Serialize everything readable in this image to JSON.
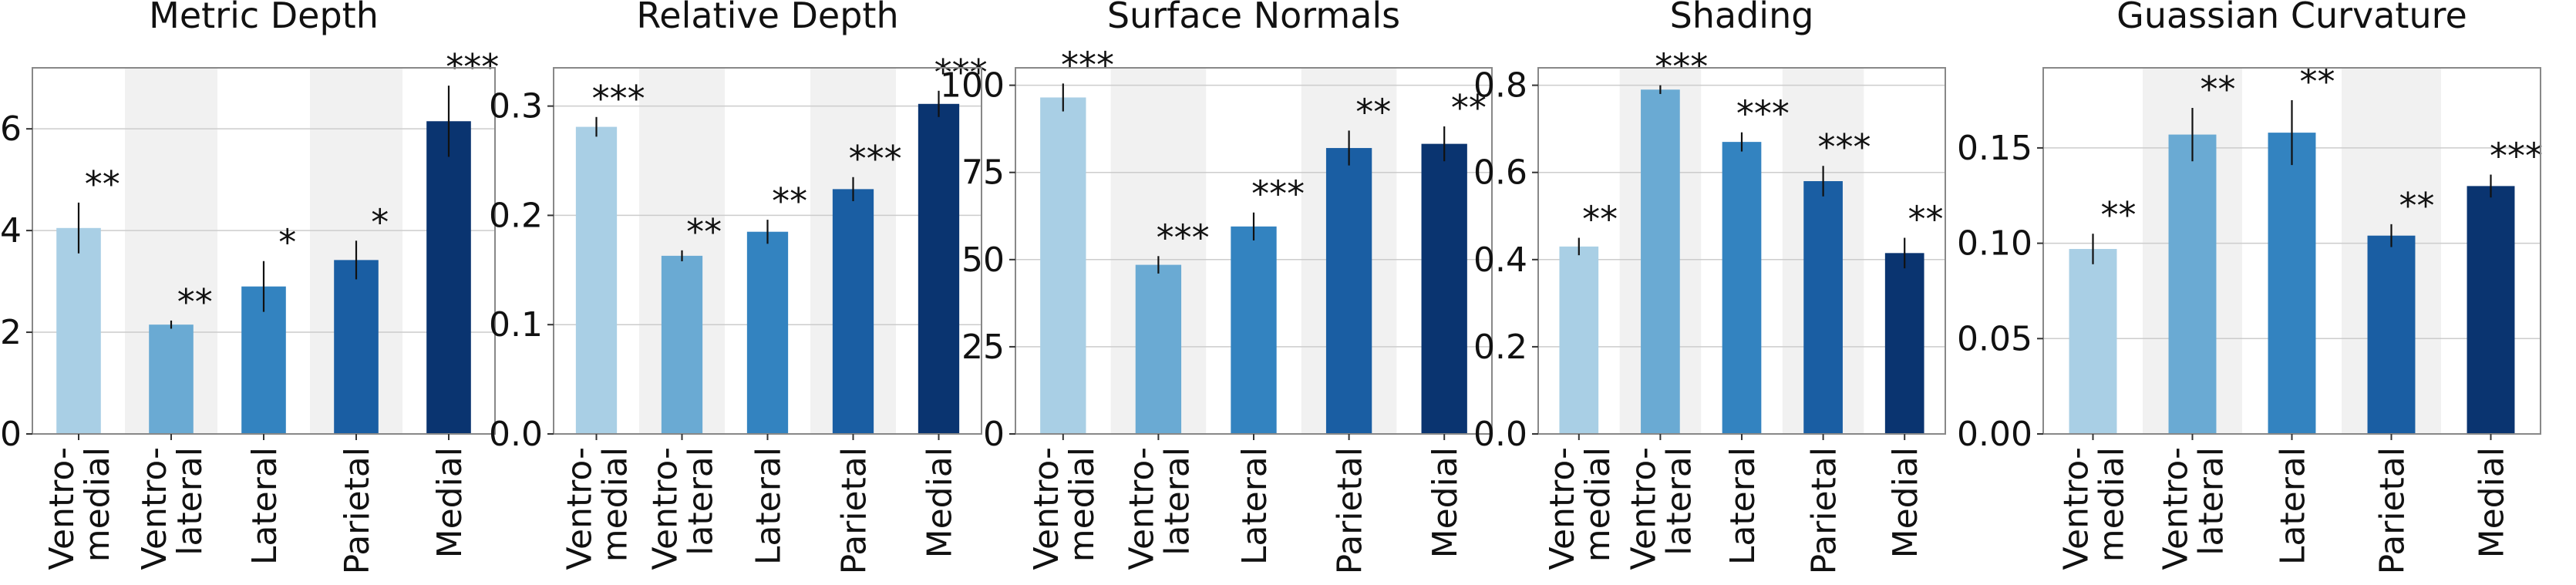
{
  "chart_data": [
    {
      "type": "bar",
      "title": "Metric Depth",
      "categories": [
        "Ventro-\nmedial",
        "Ventro-\nlateral",
        "Lateral",
        "Parietal",
        "Medial"
      ],
      "values": [
        4.05,
        2.15,
        2.9,
        3.42,
        6.15
      ],
      "errors": [
        0.5,
        0.08,
        0.5,
        0.38,
        0.7
      ],
      "significance": [
        "**",
        "**",
        "*",
        "*",
        "***"
      ],
      "ylim": [
        0,
        7.2
      ],
      "yticks": [
        0,
        2,
        4,
        6
      ],
      "ytick_labels": [
        "0",
        "2",
        "4",
        "6"
      ],
      "colors": [
        "#a9cfe5",
        "#6aaad3",
        "#3383c0",
        "#1a5ea3",
        "#0a3470"
      ],
      "grid": true,
      "alternating_bands": true
    },
    {
      "type": "bar",
      "title": "Relative Depth",
      "categories": [
        "Ventro-\nmedial",
        "Ventro-\nlateral",
        "Lateral",
        "Parietal",
        "Medial"
      ],
      "values": [
        0.281,
        0.163,
        0.185,
        0.224,
        0.302
      ],
      "errors": [
        0.009,
        0.005,
        0.011,
        0.011,
        0.012
      ],
      "significance": [
        "***",
        "**",
        "**",
        "***",
        "***"
      ],
      "ylim": [
        0,
        0.335
      ],
      "yticks": [
        0,
        0.1,
        0.2,
        0.3
      ],
      "ytick_labels": [
        "0.0",
        "0.1",
        "0.2",
        "0.3"
      ],
      "colors": [
        "#a9cfe5",
        "#6aaad3",
        "#3383c0",
        "#1a5ea3",
        "#0a3470"
      ],
      "grid": true,
      "alternating_bands": true
    },
    {
      "type": "bar",
      "title": "Surface Normals",
      "categories": [
        "Ventro-\nmedial",
        "Ventro-\nlateral",
        "Lateral",
        "Parietal",
        "Medial"
      ],
      "values": [
        96.5,
        48.5,
        59.5,
        82.0,
        83.2
      ],
      "errors": [
        4.0,
        2.5,
        4.0,
        5.0,
        5.0
      ],
      "significance": [
        "***",
        "***",
        "***",
        "**",
        "**"
      ],
      "ylim": [
        0,
        105
      ],
      "yticks": [
        0,
        25,
        50,
        75,
        100
      ],
      "ytick_labels": [
        "0",
        "25",
        "50",
        "75",
        "100"
      ],
      "colors": [
        "#a9cfe5",
        "#6aaad3",
        "#3383c0",
        "#1a5ea3",
        "#0a3470"
      ],
      "grid": true,
      "alternating_bands": true
    },
    {
      "type": "bar",
      "title": "Shading",
      "categories": [
        "Ventro-\nmedial",
        "Ventro-\nlateral",
        "Lateral",
        "Parietal",
        "Medial"
      ],
      "values": [
        0.43,
        0.79,
        0.67,
        0.58,
        0.415
      ],
      "errors": [
        0.02,
        0.01,
        0.022,
        0.035,
        0.035
      ],
      "significance": [
        "**",
        "***",
        "***",
        "***",
        "**"
      ],
      "ylim": [
        0,
        0.84
      ],
      "yticks": [
        0,
        0.2,
        0.4,
        0.6,
        0.8
      ],
      "ytick_labels": [
        "0.0",
        "0.2",
        "0.4",
        "0.6",
        "0.8"
      ],
      "colors": [
        "#a9cfe5",
        "#6aaad3",
        "#3383c0",
        "#1a5ea3",
        "#0a3470"
      ],
      "grid": true,
      "alternating_bands": true
    },
    {
      "type": "bar",
      "title": "Guassian Curvature",
      "categories": [
        "Ventro-\nmedial",
        "Ventro-\nlateral",
        "Lateral",
        "Parietal",
        "Medial"
      ],
      "values": [
        0.097,
        0.157,
        0.158,
        0.104,
        0.13
      ],
      "errors": [
        0.008,
        0.014,
        0.017,
        0.006,
        0.006
      ],
      "significance": [
        "**",
        "**",
        "**",
        "**",
        "***"
      ],
      "ylim": [
        0,
        0.192
      ],
      "yticks": [
        0,
        0.05,
        0.1,
        0.15
      ],
      "ytick_labels": [
        "0.00",
        "0.05",
        "0.10",
        "0.15"
      ],
      "colors": [
        "#a9cfe5",
        "#6aaad3",
        "#3383c0",
        "#1a5ea3",
        "#0a3470"
      ],
      "grid": true,
      "alternating_bands": true
    }
  ]
}
